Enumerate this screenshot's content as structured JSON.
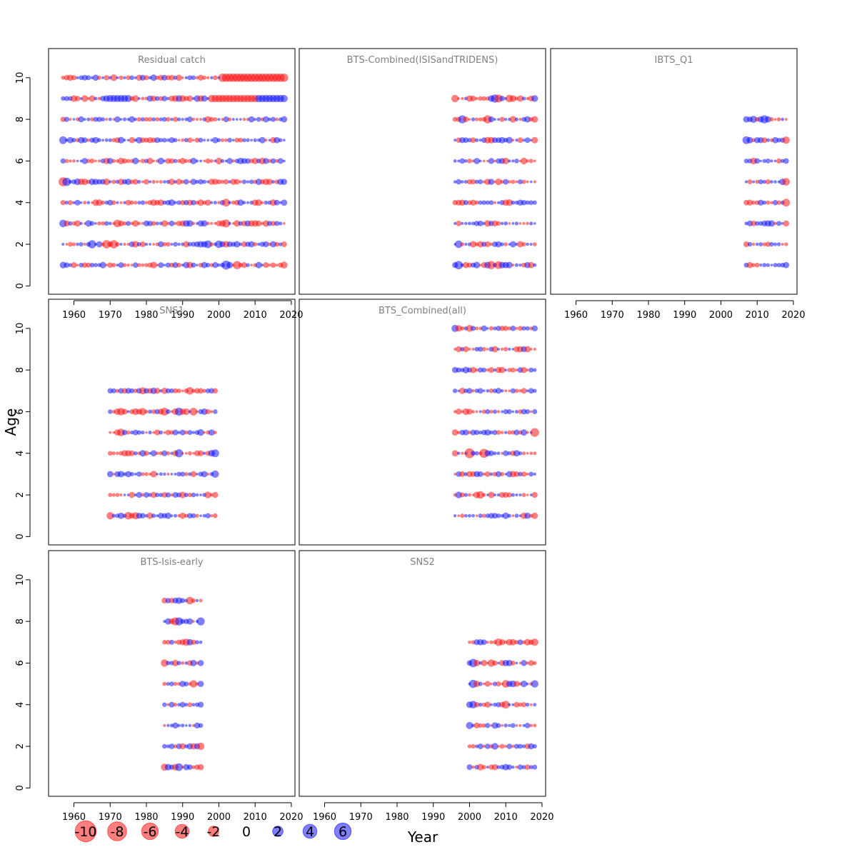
{
  "chart_data": {
    "type": "scatter",
    "xlabel": "Year",
    "ylabel": "Age",
    "xlim": [
      1953,
      2021
    ],
    "ylim": [
      -0.4,
      11.4
    ],
    "x_ticks": [
      1960,
      1970,
      1980,
      1990,
      2000,
      2010,
      2020
    ],
    "y_ticks": [
      0,
      2,
      4,
      6,
      8,
      10
    ],
    "colors": {
      "negative": "#ff0000",
      "positive": "#0000ff"
    },
    "legend": {
      "placement": "bottom-left",
      "values": [
        -10,
        -8,
        -6,
        -4,
        -2,
        0,
        2,
        4,
        6
      ],
      "labels": [
        "-10",
        "-8",
        "-6",
        "-4",
        "-2",
        "0",
        "2",
        "4",
        "6"
      ]
    },
    "panels": [
      {
        "title": "Residual catch",
        "years": [
          1957,
          2018
        ],
        "ages": [
          1,
          2,
          3,
          4,
          5,
          6,
          7,
          8,
          9,
          10
        ],
        "highlights": [
          {
            "age": 10,
            "from": 2001,
            "to": 2018,
            "value": -3.8
          },
          {
            "age": 9,
            "from": 1970,
            "to": 1975,
            "value": 2.5
          },
          {
            "age": 9,
            "from": 1998,
            "to": 2010,
            "value": -2.8
          },
          {
            "age": 9,
            "from": 2011,
            "to": 2018,
            "value": 2.8
          },
          {
            "age": 7,
            "year": 1957,
            "value": 3.2
          },
          {
            "age": 5,
            "year": 1957,
            "value": -4.5
          },
          {
            "age": 5,
            "year": 1958,
            "value": 3.8
          },
          {
            "age": 4,
            "year": 2002,
            "value": -3.2
          },
          {
            "age": 3,
            "year": 1957,
            "value": 3.0
          },
          {
            "age": 3,
            "year": 1972,
            "value": -3.0
          },
          {
            "age": 3,
            "year": 2002,
            "value": -3.4
          },
          {
            "age": 2,
            "year": 1965,
            "value": 3.6
          },
          {
            "age": 2,
            "year": 1969,
            "value": -3.8
          },
          {
            "age": 2,
            "year": 1971,
            "value": -3.6
          },
          {
            "age": 2,
            "year": 1997,
            "value": 3.2
          },
          {
            "age": 2,
            "year": 2000,
            "value": 3.0
          },
          {
            "age": 1,
            "year": 2002,
            "value": 4.4
          },
          {
            "age": 1,
            "year": 2005,
            "value": -3.6
          },
          {
            "age": 1,
            "year": 2018,
            "value": -2.5
          }
        ]
      },
      {
        "title": "BTS-Combined(ISISandTRIDENS)",
        "years": [
          1996,
          2018
        ],
        "ages": [
          1,
          2,
          3,
          4,
          5,
          6,
          7,
          8,
          9
        ],
        "highlights": [
          {
            "age": 9,
            "year": 1996,
            "value": -2.8
          },
          {
            "age": 9,
            "year": 2007,
            "value": 3.6
          },
          {
            "age": 9,
            "year": 2008,
            "value": -3.4
          },
          {
            "age": 9,
            "year": 2011,
            "value": -3.0
          },
          {
            "age": 8,
            "year": 1998,
            "value": 3.4
          },
          {
            "age": 8,
            "year": 2005,
            "value": -3.6
          },
          {
            "age": 2,
            "year": 1997,
            "value": 3.0
          },
          {
            "age": 1,
            "year": 1997,
            "value": 3.8
          },
          {
            "age": 1,
            "year": 2006,
            "value": -3.6
          },
          {
            "age": 1,
            "year": 2008,
            "value": -3.2
          }
        ]
      },
      {
        "title": "IBTS_Q1",
        "years": [
          2007,
          2018
        ],
        "ages": [
          1,
          2,
          3,
          4,
          5,
          6,
          7,
          8
        ],
        "highlights": [
          {
            "age": 8,
            "year": 2012,
            "value": 3.6
          },
          {
            "age": 8,
            "year": 2009,
            "value": 2.6
          },
          {
            "age": 7,
            "year": 2007,
            "value": 3.2
          },
          {
            "age": 7,
            "year": 2018,
            "value": -2.8
          },
          {
            "age": 5,
            "year": 2018,
            "value": -3.0
          },
          {
            "age": 4,
            "year": 2018,
            "value": -3.2
          }
        ]
      },
      {
        "title": "SNS1",
        "years": [
          1970,
          1999
        ],
        "ages": [
          1,
          2,
          3,
          4,
          5,
          6,
          7
        ],
        "highlights": [
          {
            "age": 7,
            "year": 1979,
            "value": -2.6
          },
          {
            "age": 7,
            "year": 1992,
            "value": -3.0
          },
          {
            "age": 6,
            "year": 1973,
            "value": -3.0
          },
          {
            "age": 6,
            "year": 1979,
            "value": -2.8
          },
          {
            "age": 6,
            "year": 1985,
            "value": -3.4
          },
          {
            "age": 6,
            "year": 1989,
            "value": 3.4
          },
          {
            "age": 6,
            "year": 1993,
            "value": -3.2
          },
          {
            "age": 5,
            "year": 1973,
            "value": -3.0
          },
          {
            "age": 4,
            "year": 1989,
            "value": 3.6
          },
          {
            "age": 4,
            "year": 1999,
            "value": 3.2
          },
          {
            "age": 3,
            "year": 1999,
            "value": 2.8
          },
          {
            "age": 1,
            "year": 1970,
            "value": -2.8
          },
          {
            "age": 1,
            "year": 1975,
            "value": -3.0
          },
          {
            "age": 1,
            "year": 1977,
            "value": -2.6
          }
        ]
      },
      {
        "title": "BTS_Combined(all)",
        "years": [
          1996,
          2018
        ],
        "ages": [
          1,
          2,
          3,
          4,
          5,
          6,
          7,
          8,
          9,
          10
        ],
        "highlights": [
          {
            "age": 10,
            "year": 1996,
            "value": 2.6
          },
          {
            "age": 10,
            "year": 2000,
            "value": -2.4
          },
          {
            "age": 5,
            "year": 2018,
            "value": -4.2
          },
          {
            "age": 4,
            "year": 2000,
            "value": -5.6
          },
          {
            "age": 4,
            "year": 2004,
            "value": -4.6
          },
          {
            "age": 2,
            "year": 2003,
            "value": -3.0
          }
        ]
      },
      {
        "title": "BTS-Isis-early",
        "years": [
          1985,
          1995
        ],
        "ages": [
          1,
          2,
          3,
          4,
          5,
          6,
          7,
          8,
          9
        ],
        "highlights": [
          {
            "age": 9,
            "year": 1992,
            "value": -3.0
          },
          {
            "age": 8,
            "year": 1988,
            "value": -3.4
          },
          {
            "age": 8,
            "year": 1989,
            "value": 3.4
          },
          {
            "age": 8,
            "year": 1995,
            "value": 3.4
          },
          {
            "age": 7,
            "year": 1991,
            "value": -2.8
          },
          {
            "age": 6,
            "year": 1985,
            "value": -2.8
          },
          {
            "age": 5,
            "year": 1993,
            "value": -2.8
          },
          {
            "age": 2,
            "year": 1995,
            "value": -2.8
          },
          {
            "age": 1,
            "year": 1985,
            "value": -2.6
          },
          {
            "age": 1,
            "year": 1989,
            "value": 3.2
          }
        ]
      },
      {
        "title": "SNS2",
        "years": [
          2000,
          2018
        ],
        "ages": [
          1,
          2,
          3,
          4,
          5,
          6,
          7
        ],
        "highlights": [
          {
            "age": 7,
            "year": 2008,
            "value": -3.0
          },
          {
            "age": 7,
            "year": 2018,
            "value": -2.8
          },
          {
            "age": 6,
            "year": 2001,
            "value": 3.8
          },
          {
            "age": 6,
            "year": 2006,
            "value": -2.8
          },
          {
            "age": 5,
            "year": 2001,
            "value": 3.6
          },
          {
            "age": 5,
            "year": 2010,
            "value": -3.0
          },
          {
            "age": 5,
            "year": 2018,
            "value": 2.8
          },
          {
            "age": 4,
            "year": 2001,
            "value": 3.0
          },
          {
            "age": 4,
            "year": 2010,
            "value": -3.2
          },
          {
            "age": 3,
            "year": 2000,
            "value": 2.6
          }
        ]
      }
    ]
  }
}
